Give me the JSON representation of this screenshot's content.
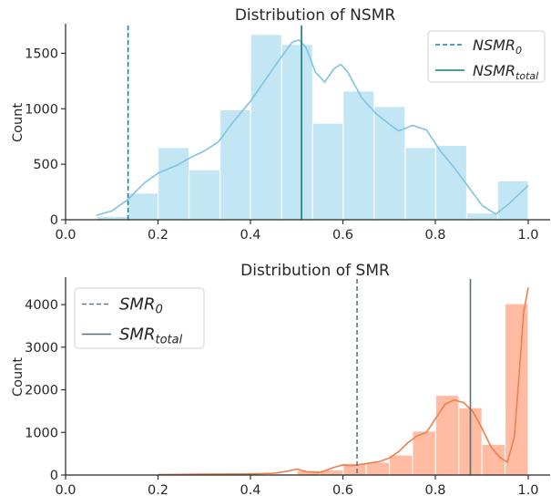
{
  "chart_data": [
    {
      "type": "bar",
      "title": "Distribution of NSMR",
      "xlabel": "",
      "ylabel": "Count",
      "xlim": [
        0.0,
        1.0
      ],
      "ylim": [
        0,
        1750
      ],
      "xticks": [
        "0.0",
        "0.2",
        "0.4",
        "0.6",
        "0.8",
        "1.0"
      ],
      "yticks": [
        "0",
        "500",
        "1000",
        "1500"
      ],
      "bin_edges": [
        0.067,
        0.134,
        0.2,
        0.267,
        0.334,
        0.4,
        0.467,
        0.534,
        0.6,
        0.667,
        0.734,
        0.8,
        0.867,
        0.934,
        1.0
      ],
      "values": [
        30,
        240,
        650,
        450,
        990,
        1670,
        1580,
        870,
        1160,
        1020,
        650,
        670,
        60,
        350
      ],
      "kde": [
        [
          0.067,
          40
        ],
        [
          0.1,
          80
        ],
        [
          0.134,
          180
        ],
        [
          0.17,
          330
        ],
        [
          0.2,
          420
        ],
        [
          0.24,
          490
        ],
        [
          0.27,
          560
        ],
        [
          0.3,
          620
        ],
        [
          0.33,
          700
        ],
        [
          0.36,
          870
        ],
        [
          0.4,
          1070
        ],
        [
          0.43,
          1250
        ],
        [
          0.46,
          1430
        ],
        [
          0.49,
          1600
        ],
        [
          0.505,
          1620
        ],
        [
          0.52,
          1550
        ],
        [
          0.54,
          1330
        ],
        [
          0.56,
          1240
        ],
        [
          0.58,
          1360
        ],
        [
          0.595,
          1400
        ],
        [
          0.61,
          1330
        ],
        [
          0.64,
          1100
        ],
        [
          0.67,
          960
        ],
        [
          0.7,
          860
        ],
        [
          0.72,
          800
        ],
        [
          0.75,
          850
        ],
        [
          0.78,
          810
        ],
        [
          0.81,
          620
        ],
        [
          0.84,
          470
        ],
        [
          0.87,
          300
        ],
        [
          0.9,
          130
        ],
        [
          0.93,
          50
        ],
        [
          0.96,
          150
        ],
        [
          1.0,
          310
        ]
      ],
      "bar_color": "#87ceeb",
      "kde_color": "#7ec3e3",
      "vlines": [
        {
          "name": "NSMR",
          "subscript": "0",
          "x": 0.135,
          "style": "dashed",
          "color": "#1e7fa8"
        },
        {
          "name": "NSMR",
          "subscript": "total",
          "x": 0.51,
          "style": "solid",
          "color": "#137a80"
        }
      ],
      "legend": "top-right"
    },
    {
      "type": "bar",
      "title": "Distribution of SMR",
      "xlabel": "",
      "ylabel": "Count",
      "xlim": [
        0.0,
        1.0
      ],
      "ylim": [
        0,
        4600
      ],
      "xticks": [
        "0.0",
        "0.2",
        "0.4",
        "0.6",
        "0.8",
        "1.0"
      ],
      "yticks": [
        "0",
        "1000",
        "2000",
        "3000",
        "4000"
      ],
      "bin_edges": [
        0.2,
        0.25,
        0.3,
        0.35,
        0.4,
        0.45,
        0.5,
        0.55,
        0.6,
        0.65,
        0.7,
        0.75,
        0.8,
        0.85,
        0.9,
        0.95,
        1.0
      ],
      "values": [
        15,
        15,
        15,
        20,
        20,
        25,
        100,
        120,
        270,
        300,
        470,
        1030,
        1870,
        1580,
        720,
        4020
      ],
      "kde": [
        [
          0.2,
          10
        ],
        [
          0.3,
          20
        ],
        [
          0.4,
          25
        ],
        [
          0.45,
          40
        ],
        [
          0.48,
          90
        ],
        [
          0.5,
          140
        ],
        [
          0.52,
          80
        ],
        [
          0.55,
          60
        ],
        [
          0.58,
          180
        ],
        [
          0.6,
          240
        ],
        [
          0.62,
          220
        ],
        [
          0.65,
          270
        ],
        [
          0.68,
          320
        ],
        [
          0.7,
          400
        ],
        [
          0.72,
          550
        ],
        [
          0.74,
          760
        ],
        [
          0.76,
          920
        ],
        [
          0.78,
          1000
        ],
        [
          0.8,
          1330
        ],
        [
          0.82,
          1660
        ],
        [
          0.84,
          1760
        ],
        [
          0.86,
          1700
        ],
        [
          0.88,
          1500
        ],
        [
          0.9,
          1100
        ],
        [
          0.92,
          650
        ],
        [
          0.94,
          400
        ],
        [
          0.955,
          300
        ],
        [
          0.97,
          900
        ],
        [
          0.98,
          2300
        ],
        [
          0.99,
          3800
        ],
        [
          1.0,
          4400
        ]
      ],
      "bar_color": "#ffa07a",
      "kde_color": "#f27d4d",
      "vlines": [
        {
          "name": "SMR",
          "subscript": "0",
          "x": 0.63,
          "style": "dashed",
          "color": "#5b7a8f"
        },
        {
          "name": "SMR",
          "subscript": "total",
          "x": 0.875,
          "style": "solid",
          "color": "#58707e"
        }
      ],
      "legend": "top-left"
    }
  ]
}
